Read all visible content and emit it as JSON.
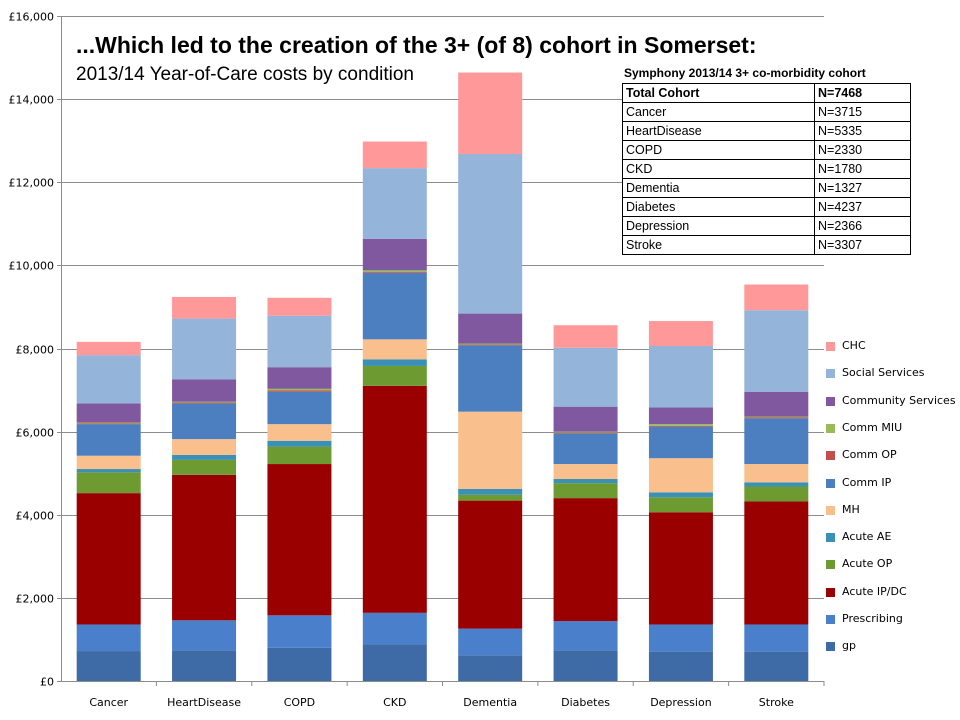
{
  "slide": {
    "title": "...Which led to the creation of the 3+ (of 8) cohort in Somerset:",
    "subtitle": "2013/14 Year-of-Care  costs by condition"
  },
  "cohort_table": {
    "caption": "Symphony 2013/14 3+ co-morbidity cohort",
    "rows": [
      {
        "label": "Total Cohort",
        "value": "N=7468"
      },
      {
        "label": "Cancer",
        "value": "N=3715"
      },
      {
        "label": "HeartDisease",
        "value": "N=5335"
      },
      {
        "label": "COPD",
        "value": "N=2330"
      },
      {
        "label": "CKD",
        "value": "N=1780"
      },
      {
        "label": "Dementia",
        "value": "N=1327"
      },
      {
        "label": "Diabetes",
        "value": "N=4237"
      },
      {
        "label": "Depression",
        "value": "N=2366"
      },
      {
        "label": "Stroke",
        "value": "N=3307"
      }
    ]
  },
  "chart_data": {
    "type": "bar",
    "stacked": true,
    "categories": [
      "Cancer",
      "HeartDisease",
      "COPD",
      "CKD",
      "Dementia",
      "Diabetes",
      "Depression",
      "Stroke"
    ],
    "ylim": [
      0,
      16000
    ],
    "yticks": [
      0,
      2000,
      4000,
      6000,
      8000,
      10000,
      12000,
      14000,
      16000
    ],
    "ytick_labels": [
      "£0",
      "£2,000",
      "£4,000",
      "£6,000",
      "£8,000",
      "£10,000",
      "£12,000",
      "£14,000",
      "£16,000"
    ],
    "grid": true,
    "legend_position": "right",
    "series": [
      {
        "name": "gp",
        "color": "#3e6aa6",
        "values": [
          720,
          740,
          800,
          880,
          620,
          740,
          700,
          700
        ]
      },
      {
        "name": "Prescribing",
        "color": "#4a7fcb",
        "values": [
          640,
          720,
          780,
          760,
          640,
          700,
          660,
          660
        ]
      },
      {
        "name": "Acute IP/DC",
        "color": "#9b0000",
        "values": [
          3160,
          3500,
          3640,
          5460,
          3080,
          2960,
          2700,
          2960
        ]
      },
      {
        "name": "Acute OP",
        "color": "#6e9a32",
        "values": [
          500,
          360,
          420,
          480,
          140,
          360,
          360,
          360
        ]
      },
      {
        "name": "Acute AE",
        "color": "#3a91b5",
        "values": [
          80,
          120,
          140,
          160,
          140,
          100,
          120,
          100
        ]
      },
      {
        "name": "MH",
        "color": "#f9c08e",
        "values": [
          320,
          380,
          400,
          480,
          1860,
          360,
          820,
          440
        ]
      },
      {
        "name": "Comm IP",
        "color": "#4b7fc0",
        "values": [
          760,
          860,
          780,
          1600,
          1600,
          740,
          760,
          1100
        ]
      },
      {
        "name": "Comm OP",
        "color": "#c0504d",
        "values": [
          20,
          20,
          30,
          20,
          20,
          20,
          20,
          20
        ]
      },
      {
        "name": "Comm MIU",
        "color": "#9bbb59",
        "values": [
          20,
          20,
          40,
          40,
          20,
          20,
          40,
          20
        ]
      },
      {
        "name": "Community Services",
        "color": "#7f58a0",
        "values": [
          460,
          540,
          520,
          760,
          720,
          600,
          400,
          600
        ]
      },
      {
        "name": "Social Services",
        "color": "#94b4da",
        "values": [
          1160,
          1460,
          1240,
          1700,
          3840,
          1420,
          1480,
          1960
        ]
      },
      {
        "name": "CHC",
        "color": "#ff9999",
        "values": [
          320,
          520,
          430,
          640,
          1960,
          540,
          600,
          620
        ]
      }
    ]
  }
}
